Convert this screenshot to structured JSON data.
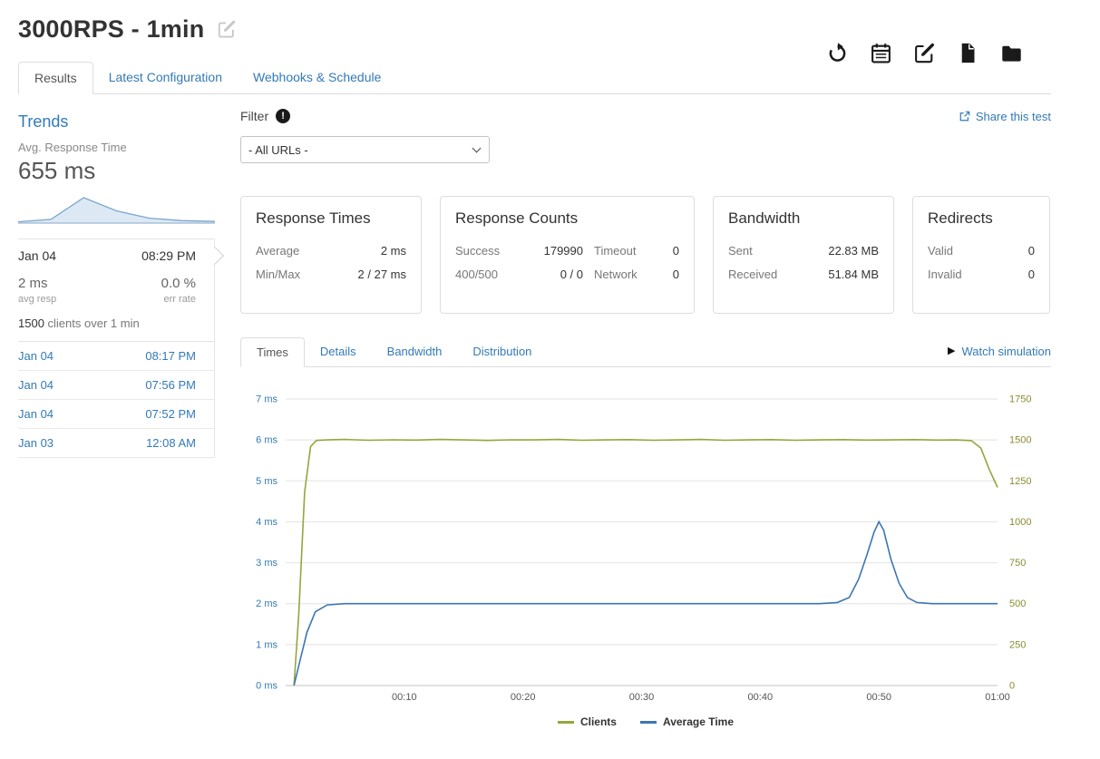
{
  "colors": {
    "link": "#337ab7",
    "clients_line": "#94a63d",
    "avg_time_line": "#3d76b3"
  },
  "header": {
    "title": "3000RPS - 1min"
  },
  "tabs": [
    {
      "label": "Results",
      "active": true
    },
    {
      "label": "Latest Configuration",
      "active": false
    },
    {
      "label": "Webhooks & Schedule",
      "active": false
    }
  ],
  "sidebar": {
    "trends_title": "Trends",
    "metric_label": "Avg. Response Time",
    "metric_value": "655 ms",
    "spark_values": [
      3,
      9,
      62,
      30,
      12,
      6,
      4
    ],
    "selected_run": {
      "date": "Jan 04",
      "time": "08:29 PM",
      "avg_resp_value": "2 ms",
      "avg_resp_label": "avg resp",
      "err_rate_value": "0.0 %",
      "err_rate_label": "err rate",
      "clients_count": "1500",
      "summary_rest": " clients over 1 min"
    },
    "runs": [
      {
        "date": "Jan 04",
        "time": "08:17 PM"
      },
      {
        "date": "Jan 04",
        "time": "07:56 PM"
      },
      {
        "date": "Jan 04",
        "time": "07:52 PM"
      },
      {
        "date": "Jan 03",
        "time": "12:08 AM"
      }
    ]
  },
  "filter": {
    "label": "Filter",
    "info_glyph": "!",
    "selected_option": "- All URLs -"
  },
  "share": {
    "label": "Share this test"
  },
  "cards": {
    "response_times": {
      "title": "Response Times",
      "rows": [
        {
          "label": "Average",
          "value": "2 ms"
        },
        {
          "label": "Min/Max",
          "value": "2 / 27 ms"
        }
      ]
    },
    "response_counts": {
      "title": "Response Counts",
      "rows": [
        {
          "label1": "Success",
          "value1": "179990",
          "label2": "Timeout",
          "value2": "0"
        },
        {
          "label1": "400/500",
          "value1": "0 / 0",
          "label2": "Network",
          "value2": "0"
        }
      ]
    },
    "bandwidth": {
      "title": "Bandwidth",
      "rows": [
        {
          "label": "Sent",
          "value": "22.83 MB"
        },
        {
          "label": "Received",
          "value": "51.84 MB"
        }
      ]
    },
    "redirects": {
      "title": "Redirects",
      "rows": [
        {
          "label": "Valid",
          "value": "0"
        },
        {
          "label": "Invalid",
          "value": "0"
        }
      ]
    }
  },
  "chart_tabs": [
    {
      "label": "Times",
      "active": true
    },
    {
      "label": "Details",
      "active": false
    },
    {
      "label": "Bandwidth",
      "active": false
    },
    {
      "label": "Distribution",
      "active": false
    }
  ],
  "watch": {
    "icon_glyph": "▶",
    "label": "Watch simulation"
  },
  "chart_data": {
    "type": "line",
    "title": "",
    "grid": "horizontal",
    "legend_position": "bottom",
    "x_axis": {
      "min": 0,
      "max": 60,
      "ticks": [
        {
          "t": 10,
          "label": "00:10"
        },
        {
          "t": 20,
          "label": "00:20"
        },
        {
          "t": 30,
          "label": "00:30"
        },
        {
          "t": 40,
          "label": "00:40"
        },
        {
          "t": 50,
          "label": "00:50"
        },
        {
          "t": 60,
          "label": "01:00"
        }
      ]
    },
    "left_axis": {
      "min": 0,
      "max": 7,
      "step": 1,
      "unit": "ms",
      "color": "#337ab7"
    },
    "right_axis": {
      "min": 0,
      "max": 1750,
      "step": 250,
      "color": "#8a8d2e"
    },
    "series": [
      {
        "name": "Clients",
        "axis": "right",
        "color": "#94a63d",
        "points": [
          [
            0.7,
            0
          ],
          [
            1.1,
            430
          ],
          [
            1.6,
            1180
          ],
          [
            2.1,
            1460
          ],
          [
            2.6,
            1497
          ],
          [
            3.5,
            1500
          ],
          [
            5,
            1503
          ],
          [
            7,
            1498
          ],
          [
            9,
            1501
          ],
          [
            11,
            1499
          ],
          [
            13,
            1503
          ],
          [
            15,
            1500
          ],
          [
            17,
            1497
          ],
          [
            19,
            1501
          ],
          [
            21,
            1500
          ],
          [
            23,
            1503
          ],
          [
            25,
            1498
          ],
          [
            27,
            1500
          ],
          [
            29,
            1502
          ],
          [
            31,
            1498
          ],
          [
            33,
            1500
          ],
          [
            35,
            1503
          ],
          [
            37,
            1498
          ],
          [
            39,
            1500
          ],
          [
            41,
            1502
          ],
          [
            43,
            1498
          ],
          [
            45,
            1500
          ],
          [
            47,
            1502
          ],
          [
            49,
            1499
          ],
          [
            51,
            1500
          ],
          [
            53,
            1502
          ],
          [
            55,
            1499
          ],
          [
            56.5,
            1500
          ],
          [
            57.8,
            1496
          ],
          [
            58.6,
            1450
          ],
          [
            59.3,
            1320
          ],
          [
            60,
            1210
          ]
        ]
      },
      {
        "name": "Average Time",
        "axis": "left",
        "color": "#3d76b3",
        "points": [
          [
            0.7,
            0
          ],
          [
            1.2,
            0.6
          ],
          [
            1.8,
            1.3
          ],
          [
            2.5,
            1.8
          ],
          [
            3.5,
            1.97
          ],
          [
            5,
            2
          ],
          [
            8,
            2
          ],
          [
            12,
            2
          ],
          [
            16,
            2
          ],
          [
            20,
            2
          ],
          [
            24,
            2
          ],
          [
            28,
            2
          ],
          [
            32,
            2
          ],
          [
            36,
            2
          ],
          [
            40,
            2
          ],
          [
            43,
            2
          ],
          [
            45,
            2
          ],
          [
            46.5,
            2.03
          ],
          [
            47.5,
            2.15
          ],
          [
            48.3,
            2.6
          ],
          [
            49,
            3.2
          ],
          [
            49.6,
            3.75
          ],
          [
            50,
            4
          ],
          [
            50.4,
            3.8
          ],
          [
            51,
            3.1
          ],
          [
            51.7,
            2.5
          ],
          [
            52.4,
            2.15
          ],
          [
            53.2,
            2.03
          ],
          [
            54.5,
            2
          ],
          [
            57,
            2
          ],
          [
            60,
            2
          ]
        ]
      }
    ]
  }
}
